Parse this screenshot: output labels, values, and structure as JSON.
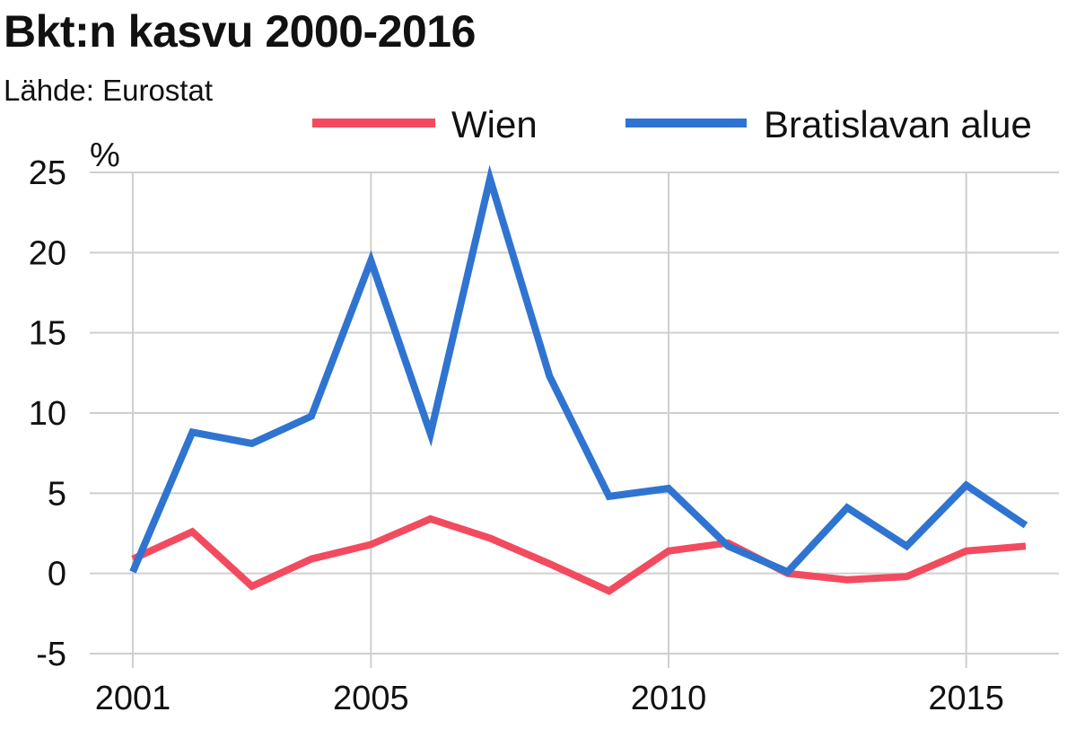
{
  "chart_data": {
    "type": "line",
    "title": "Bkt:n kasvu 2000-2016",
    "subtitle": "Lähde: Eurostat",
    "ylabel": "%",
    "xlabel": "",
    "x": [
      2001,
      2002,
      2003,
      2004,
      2005,
      2006,
      2007,
      2008,
      2009,
      2010,
      2011,
      2012,
      2013,
      2014,
      2015,
      2016
    ],
    "xticks": [
      2001,
      2005,
      2010,
      2015
    ],
    "yticks": [
      -5,
      0,
      5,
      10,
      15,
      20,
      25
    ],
    "ylim": [
      -5,
      25
    ],
    "xlim": [
      2001,
      2016
    ],
    "grid": true,
    "legend_position": "top-right",
    "series": [
      {
        "name": "Wien",
        "color": "#f24b5f",
        "values": [
          0.9,
          2.6,
          -0.8,
          0.9,
          1.8,
          3.4,
          2.2,
          0.6,
          -1.1,
          1.4,
          1.9,
          0.0,
          -0.4,
          -0.2,
          1.4,
          1.7
        ]
      },
      {
        "name": "Bratislavan alue",
        "color": "#2f74d0",
        "values": [
          0.1,
          8.8,
          8.1,
          9.8,
          19.5,
          8.7,
          24.6,
          12.3,
          4.8,
          5.3,
          1.7,
          0.1,
          4.1,
          1.7,
          5.5,
          3.0
        ]
      }
    ]
  }
}
